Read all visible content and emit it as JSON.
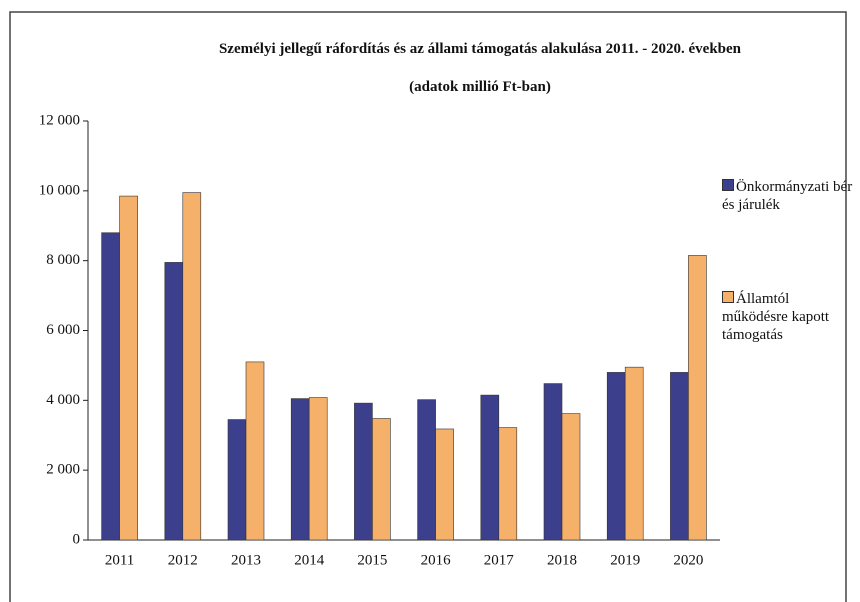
{
  "chart_data": {
    "type": "bar",
    "title": "Személyi jellegű ráfordítás és az állami támogatás alakulása 2011. - 2020. években",
    "subtitle": "(adatok millió Ft-ban)",
    "categories": [
      "2011",
      "2012",
      "2013",
      "2014",
      "2015",
      "2016",
      "2017",
      "2018",
      "2019",
      "2020"
    ],
    "series": [
      {
        "name": "Önkormányzati bér és járulék",
        "color": "#3c3f8c",
        "values": [
          8800,
          7950,
          3450,
          4050,
          3920,
          4020,
          4150,
          4480,
          4800,
          4800
        ]
      },
      {
        "name": "Államtól működésre kapott támogatás",
        "color": "#f5b06a",
        "values": [
          9850,
          9950,
          5100,
          4080,
          3480,
          3180,
          3220,
          3620,
          4950,
          8150
        ]
      }
    ],
    "ylim": [
      0,
      12000
    ],
    "yticks": [
      0,
      {
        "value": 2000,
        "label": "2 000"
      },
      {
        "value": 4000,
        "label": "4 000"
      },
      {
        "value": 6000,
        "label": "6 000"
      },
      {
        "value": 8000,
        "label": "8 000"
      },
      {
        "value": 10000,
        "label": "10 000"
      },
      {
        "value": 12000,
        "label": "12 000"
      }
    ],
    "grid": false,
    "legend": "right"
  }
}
